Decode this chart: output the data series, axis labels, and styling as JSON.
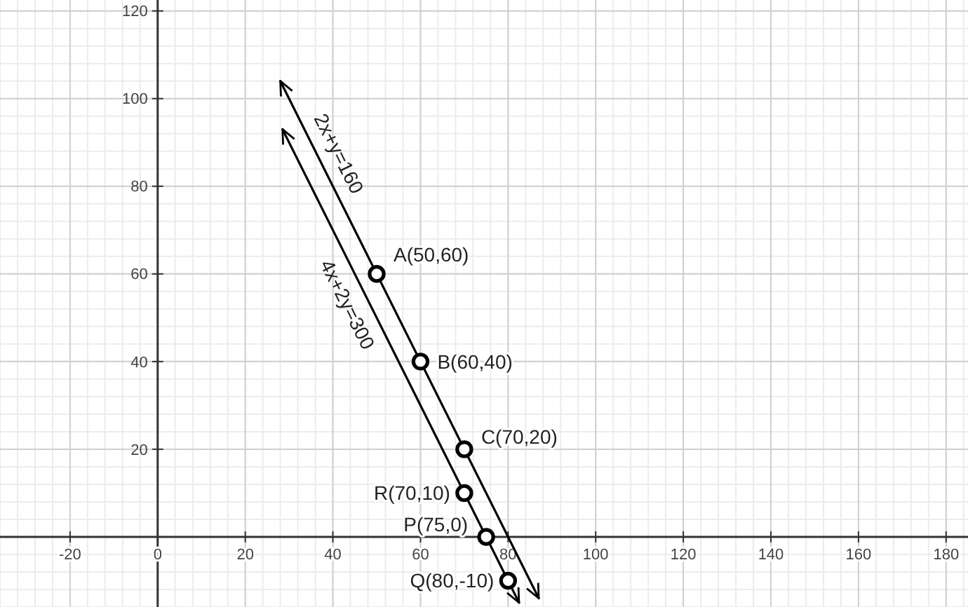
{
  "chart_data": {
    "type": "line",
    "series": [
      {
        "name": "2x+y=160",
        "x": [
          28,
          87
        ],
        "values": [
          104,
          -14
        ],
        "color": "#000000"
      },
      {
        "name": "4x+2y=300",
        "x": [
          28.5,
          82.5
        ],
        "values": [
          93,
          -15
        ],
        "color": "#000000"
      },
      {
        "type": "scatter",
        "marker": "circle",
        "x": [
          50,
          60,
          70,
          70,
          75,
          80
        ],
        "values": [
          60,
          40,
          20,
          10,
          0,
          -10
        ],
        "color": "#000000"
      }
    ],
    "line_style": "solid",
    "grid": true,
    "xlim": [
      -36,
      185
    ],
    "ylim": [
      -16,
      122.5
    ],
    "xticks": [
      -20,
      0,
      20,
      40,
      60,
      80,
      100,
      120,
      140,
      160,
      180
    ],
    "yticks": [
      20,
      40,
      60,
      80,
      100,
      120
    ],
    "annotations": [
      {
        "text": "A(50,60)",
        "x": 50,
        "y": 60
      },
      {
        "text": "B(60,40)",
        "x": 60,
        "y": 40
      },
      {
        "text": "C(70,20)",
        "x": 70,
        "y": 20
      },
      {
        "text": "R(70,10)",
        "x": 70,
        "y": 10
      },
      {
        "text": "P(75,0)",
        "x": 75,
        "y": 0
      },
      {
        "text": "Q(80,-10)",
        "x": 80,
        "y": -10
      }
    ]
  }
}
